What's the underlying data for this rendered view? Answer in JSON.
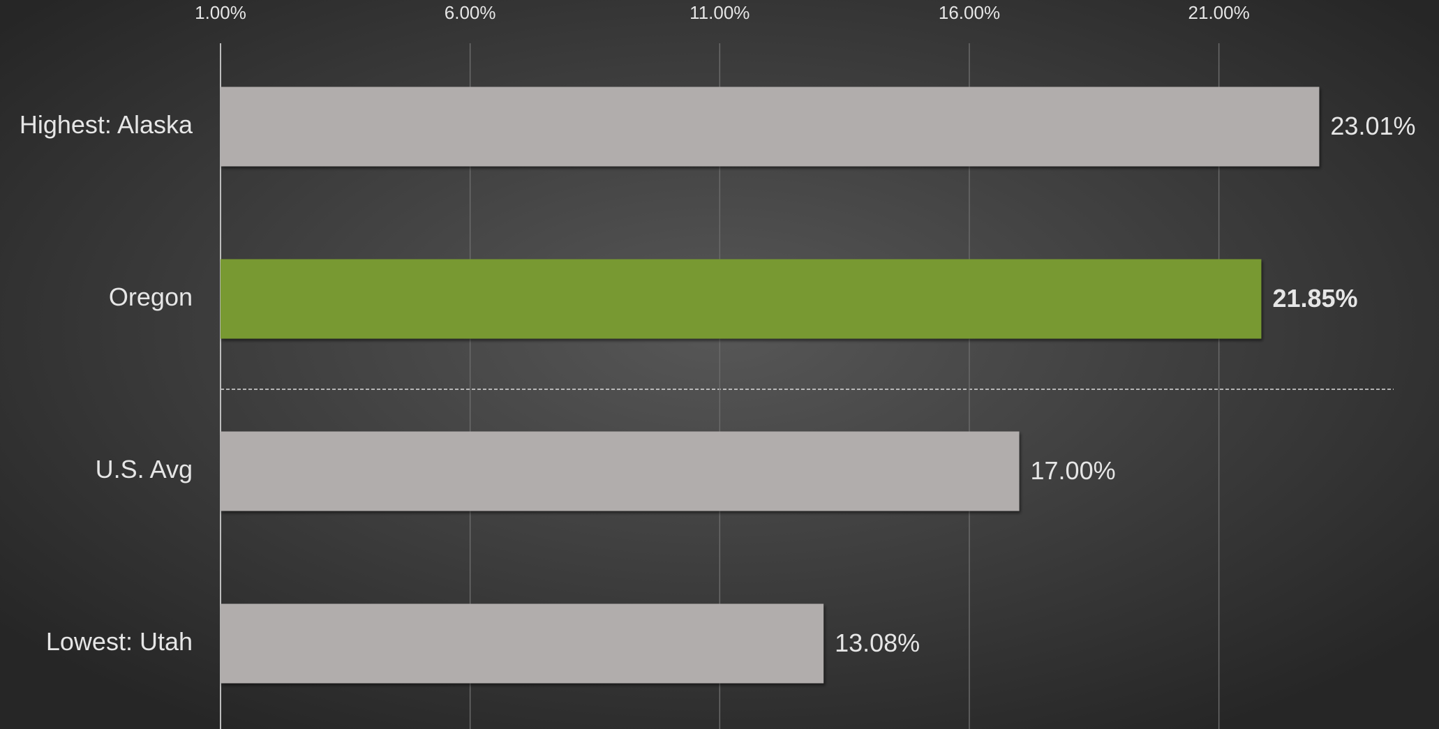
{
  "chart_data": {
    "type": "bar",
    "orientation": "horizontal",
    "categories": [
      "Highest: Alaska",
      "Oregon",
      "U.S. Avg",
      "Lowest: Utah"
    ],
    "values": [
      23.01,
      21.85,
      17.0,
      13.08
    ],
    "value_labels": [
      "23.01%",
      "21.85%",
      "17.00%",
      "13.08%"
    ],
    "colors": [
      "#b1adac",
      "#789933",
      "#b1adac",
      "#b1adac"
    ],
    "xlim": [
      1,
      24.5
    ],
    "xticks": [
      {
        "value": 1,
        "label": "1.00%"
      },
      {
        "value": 6,
        "label": "6.00%"
      },
      {
        "value": 11,
        "label": "11.00%"
      },
      {
        "value": 16,
        "label": "16.00%"
      },
      {
        "value": 21,
        "label": "21.00%"
      }
    ],
    "grid": true
  }
}
